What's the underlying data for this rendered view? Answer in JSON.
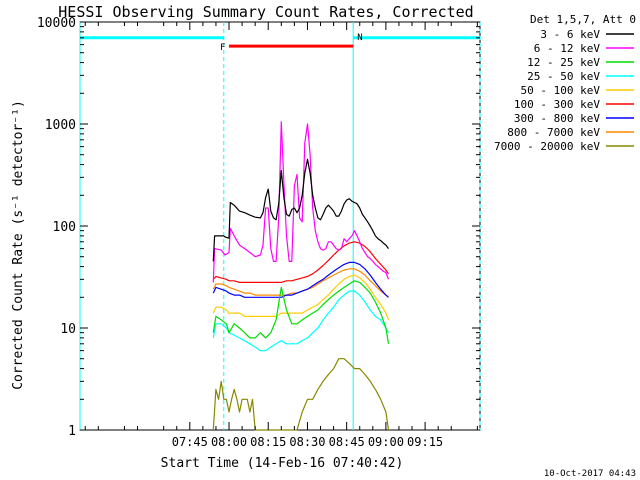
{
  "chart_data": {
    "type": "line",
    "title": "HESSI Observing Summary Count Rates, Corrected",
    "xlabel": "Start Time (14-Feb-16 07:40:42)",
    "ylabel": "Corrected Count Rate (s⁻¹ detector⁻¹)",
    "yscale": "log",
    "xlim_minutes": [
      -57,
      96
    ],
    "ylim": [
      1,
      10000
    ],
    "x_ticks": [
      "07:45",
      "08:00",
      "08:15",
      "08:30",
      "08:45",
      "09:00",
      "09:15"
    ],
    "y_ticks": [
      "1",
      "10",
      "100",
      "1000",
      "10000"
    ],
    "legend_header": "Det 1,5,7, Att 0",
    "legend_location": "right, outside plot",
    "timestamp": "10-Oct-2017 04:43",
    "x_unit_note": "x values are minutes after 08:00 on 14-Feb-16",
    "series": [
      {
        "name": "3 - 6 keV",
        "color": "#000000",
        "x": [
          -6,
          -5.5,
          -2,
          -1.5,
          0,
          0.5,
          2,
          4,
          6,
          8,
          10,
          12,
          13,
          14,
          15,
          16,
          17,
          18,
          19,
          20,
          21,
          22,
          23,
          24,
          25,
          26,
          27,
          28,
          29,
          30,
          31,
          32,
          33,
          34,
          35,
          36,
          37,
          38,
          39,
          40,
          41,
          42,
          43,
          44,
          45,
          46,
          47,
          48,
          49,
          50,
          51,
          52,
          53,
          54,
          55,
          56,
          57,
          58,
          59,
          60,
          61
        ],
        "y": [
          45,
          80,
          80,
          78,
          76,
          170,
          160,
          140,
          135,
          128,
          122,
          120,
          135,
          190,
          230,
          140,
          120,
          115,
          165,
          350,
          190,
          130,
          125,
          145,
          150,
          135,
          150,
          200,
          330,
          450,
          330,
          200,
          150,
          120,
          115,
          130,
          150,
          160,
          150,
          140,
          125,
          125,
          140,
          165,
          180,
          185,
          175,
          170,
          165,
          150,
          130,
          120,
          110,
          100,
          90,
          80,
          75,
          72,
          68,
          65,
          60
        ]
      },
      {
        "name": "6 - 12 keV",
        "color": "#ff00ff",
        "x": [
          -6,
          -5.5,
          -3,
          -1.5,
          0,
          0.5,
          2,
          4,
          6,
          8,
          10,
          12,
          13,
          14,
          15,
          16,
          17,
          18,
          19,
          20,
          21,
          22,
          23,
          24,
          25,
          26,
          27,
          28,
          29,
          30,
          31,
          32,
          33,
          34,
          35,
          36,
          37,
          38,
          39,
          40,
          41,
          42,
          43,
          44,
          45,
          46,
          47,
          48,
          49,
          50,
          51,
          52,
          53,
          54,
          55,
          56,
          57,
          58,
          59,
          60,
          61
        ],
        "y": [
          28,
          60,
          58,
          52,
          55,
          95,
          80,
          65,
          60,
          55,
          50,
          52,
          65,
          150,
          150,
          60,
          45,
          45,
          120,
          1050,
          260,
          80,
          45,
          45,
          250,
          320,
          120,
          110,
          650,
          1000,
          500,
          150,
          90,
          70,
          60,
          58,
          60,
          70,
          70,
          65,
          60,
          58,
          60,
          75,
          70,
          75,
          80,
          90,
          80,
          70,
          60,
          55,
          50,
          48,
          45,
          42,
          40,
          38,
          36,
          35,
          30
        ]
      },
      {
        "name": "12 - 25 keV",
        "color": "#00dd00",
        "x": [
          -6,
          -5,
          -3,
          -1,
          0,
          2,
          4,
          6,
          8,
          10,
          12,
          14,
          16,
          18,
          20,
          22,
          24,
          26,
          28,
          30,
          32,
          34,
          36,
          38,
          40,
          42,
          44,
          46,
          48,
          50,
          52,
          54,
          56,
          58,
          60,
          61
        ],
        "y": [
          9,
          13,
          12,
          11,
          9,
          11,
          10,
          9,
          8,
          8,
          9,
          8,
          9,
          12,
          25,
          15,
          11,
          11,
          12,
          13,
          14,
          15,
          17,
          19,
          21,
          23,
          25,
          27,
          29,
          28,
          25,
          22,
          18,
          14,
          10,
          7
        ]
      },
      {
        "name": "25 - 50 keV",
        "color": "#00ffff",
        "x": [
          -6,
          -5,
          -3,
          -1,
          0,
          2,
          4,
          6,
          8,
          10,
          12,
          14,
          16,
          18,
          20,
          22,
          24,
          26,
          28,
          30,
          32,
          34,
          36,
          38,
          40,
          42,
          44,
          46,
          48,
          50,
          52,
          54,
          56,
          58,
          60,
          61
        ],
        "y": [
          8,
          11,
          11,
          10,
          9,
          8.5,
          8,
          7.5,
          7,
          6.5,
          6,
          6,
          6.5,
          7,
          7.5,
          7,
          7,
          7,
          7.5,
          8,
          9,
          10,
          12,
          14,
          16,
          19,
          21,
          23,
          23,
          21,
          18,
          15,
          13,
          12,
          10,
          9
        ]
      },
      {
        "name": "50 - 100 keV",
        "color": "#ffcc00",
        "x": [
          -6,
          -5,
          -3,
          -1,
          0,
          2,
          4,
          6,
          8,
          10,
          12,
          14,
          16,
          18,
          20,
          22,
          24,
          26,
          28,
          30,
          32,
          34,
          36,
          38,
          40,
          42,
          44,
          46,
          48,
          50,
          52,
          54,
          56,
          58,
          60,
          61
        ],
        "y": [
          14,
          16,
          16,
          15,
          14,
          14,
          14,
          13,
          13,
          13,
          13,
          13,
          13,
          13,
          14,
          14,
          14,
          14,
          14,
          15,
          16,
          17,
          19,
          21,
          24,
          27,
          30,
          32,
          33,
          31,
          28,
          24,
          20,
          17,
          14,
          12
        ]
      },
      {
        "name": "100 - 300 keV",
        "color": "#ff0000",
        "x": [
          -6,
          -5,
          -3,
          -1,
          0,
          2,
          4,
          6,
          8,
          10,
          12,
          14,
          16,
          18,
          20,
          22,
          24,
          26,
          28,
          30,
          32,
          34,
          36,
          38,
          40,
          42,
          44,
          46,
          48,
          50,
          52,
          54,
          56,
          58,
          60,
          61
        ],
        "y": [
          30,
          32,
          31,
          30,
          29,
          29,
          28,
          28,
          28,
          28,
          28,
          28,
          28,
          28,
          28,
          29,
          29,
          30,
          31,
          32,
          34,
          37,
          41,
          46,
          52,
          58,
          64,
          68,
          70,
          68,
          63,
          56,
          48,
          42,
          37,
          34
        ]
      },
      {
        "name": "300 - 800 keV",
        "color": "#0000ff",
        "x": [
          -6,
          -5,
          -3,
          -1,
          0,
          2,
          4,
          6,
          8,
          10,
          12,
          14,
          16,
          18,
          20,
          22,
          24,
          26,
          28,
          30,
          32,
          34,
          36,
          38,
          40,
          42,
          44,
          46,
          48,
          50,
          52,
          54,
          56,
          58,
          60,
          61
        ],
        "y": [
          22,
          25,
          24,
          23,
          22,
          21,
          21,
          20,
          20,
          20,
          20,
          20,
          20,
          20,
          20,
          21,
          21,
          22,
          23,
          24,
          26,
          28,
          30,
          33,
          36,
          39,
          42,
          44,
          44,
          42,
          38,
          33,
          28,
          24,
          21,
          20
        ]
      },
      {
        "name": "800 - 7000 keV",
        "color": "#ff8800",
        "x": [
          -6,
          -5,
          -3,
          -1,
          0,
          2,
          4,
          6,
          8,
          10,
          12,
          14,
          16,
          18,
          20,
          22,
          24,
          26,
          28,
          30,
          32,
          34,
          36,
          38,
          40,
          42,
          44,
          46,
          48,
          50,
          52,
          54,
          56,
          58,
          60,
          61
        ],
        "y": [
          24,
          27,
          27,
          26,
          25,
          24,
          23,
          22,
          22,
          21,
          21,
          21,
          21,
          21,
          21,
          21,
          22,
          22,
          23,
          24,
          25,
          27,
          29,
          31,
          33,
          35,
          37,
          38,
          38,
          36,
          33,
          29,
          26,
          23,
          21,
          20
        ]
      },
      {
        "name": "7000 - 20000 keV",
        "color": "#888800",
        "x": [
          -6,
          -5,
          -4,
          -3,
          -2,
          -1,
          0,
          1,
          2,
          3,
          4,
          5,
          6,
          7,
          8,
          9,
          10,
          11,
          12,
          13,
          14,
          16,
          18,
          20,
          22,
          24,
          26,
          28,
          30,
          32,
          34,
          36,
          38,
          40,
          42,
          44,
          46,
          48,
          50,
          52,
          54,
          56,
          58,
          60,
          61
        ],
        "y": [
          1,
          2.5,
          2,
          3,
          2,
          2,
          1.5,
          2,
          2.5,
          2,
          1.5,
          2,
          2,
          2,
          1.5,
          2,
          1,
          1,
          1,
          1,
          1,
          1,
          1,
          1,
          1,
          1,
          1,
          1.5,
          2,
          2,
          2.5,
          3,
          3.5,
          4,
          5,
          5,
          4.5,
          4,
          4,
          3.5,
          3,
          2.5,
          2,
          1.5,
          1
        ]
      }
    ],
    "markers": {
      "night_bars": [
        {
          "label": "",
          "x_start": -57,
          "x_end": -2,
          "y": 7000,
          "color": "#00ffff"
        },
        {
          "label": "N",
          "x_start": 47.5,
          "x_end": 96,
          "y": 7000,
          "color": "#00ffff"
        }
      ],
      "flare_bar": {
        "label": "F",
        "x_start": 0,
        "x_end": 47.5,
        "y": 5800,
        "color": "#ff0000"
      },
      "vertical_lines": [
        {
          "x": -57,
          "style": "solid",
          "color": "#00ffff"
        },
        {
          "x": -2,
          "style": "dashed",
          "color": "#00ffff"
        },
        {
          "x": 47.5,
          "style": "solid",
          "color": "#00ffff"
        },
        {
          "x": 96,
          "style": "dashed",
          "color": "#00ffff"
        }
      ]
    }
  }
}
